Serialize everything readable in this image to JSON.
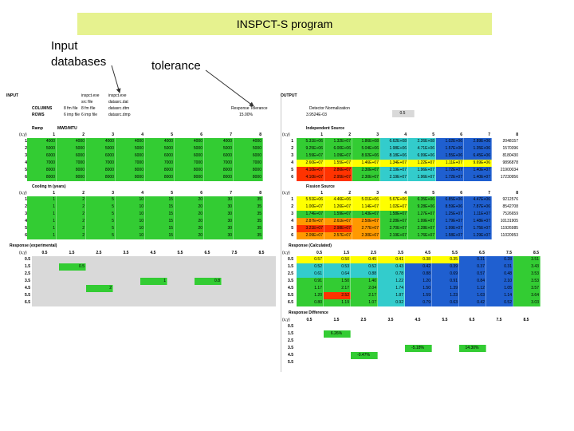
{
  "banner": {
    "text": "INSPCT-S program",
    "color": "#e6f28f"
  },
  "annotations": {
    "input_db": [
      "Input",
      "databases"
    ],
    "tolerance": "tolerance"
  },
  "colors": {
    "green": "#33cc33",
    "yellow": "#ffff00",
    "orange": "#ff9900",
    "red": "#ff3300",
    "blue": "#1f5fd0",
    "cyan": "#33cccc",
    "grey": "#d9d9d9"
  },
  "input": {
    "title": "INPUT",
    "meta_labels": [
      "COLUMNS",
      "ROWS"
    ],
    "meta_values": [
      "8 fm file",
      "6 imp file"
    ],
    "files_col1": [
      "inspct.exe",
      "src file",
      "8 fm file",
      "6 imp file"
    ],
    "files_col2": [
      "inspct.exe",
      "datasrc.dat",
      "datasrc.dtm",
      "datasrc.dmp"
    ],
    "ramp_title": "Ramp",
    "ramp_unit": "MWD/MTU",
    "cooling_title": "Cooling tn (years)",
    "response_title": "Response (experimental)",
    "xy_label": "(x,y)",
    "col_headers": [
      "1",
      "2",
      "3",
      "4",
      "5",
      "6",
      "7",
      "8"
    ],
    "row_headers": [
      "1",
      "2",
      "3",
      "4",
      "5",
      "6"
    ],
    "ramp_rows": [
      [
        "4000",
        "4000",
        "4000",
        "4000",
        "4000",
        "4000",
        "4000",
        "4000"
      ],
      [
        "5000",
        "5000",
        "5000",
        "5000",
        "5000",
        "5000",
        "5000",
        "5000"
      ],
      [
        "6000",
        "6000",
        "6000",
        "6000",
        "6000",
        "6000",
        "6000",
        "6000"
      ],
      [
        "7000",
        "7000",
        "7000",
        "7000",
        "7000",
        "7000",
        "7000",
        "7000"
      ],
      [
        "8000",
        "8000",
        "8000",
        "8000",
        "8000",
        "8000",
        "8000",
        "8000"
      ],
      [
        "8000",
        "8000",
        "8000",
        "8000",
        "8000",
        "8000",
        "8000",
        "8000"
      ]
    ],
    "cooling_rows": [
      [
        "1",
        "2",
        "5",
        "10",
        "15",
        "20",
        "30",
        "35"
      ],
      [
        "1",
        "2",
        "5",
        "10",
        "15",
        "20",
        "30",
        "35"
      ],
      [
        "1",
        "2",
        "5",
        "10",
        "15",
        "20",
        "30",
        "35"
      ],
      [
        "1",
        "2",
        "5",
        "10",
        "15",
        "20",
        "30",
        "35"
      ],
      [
        "1",
        "2",
        "5",
        "10",
        "15",
        "20",
        "30",
        "35"
      ],
      [
        "1",
        "2",
        "5",
        "10",
        "15",
        "20",
        "30",
        "35"
      ]
    ],
    "resp_col_headers": [
      "0.5",
      "1.5",
      "2.5",
      "3.5",
      "4.5",
      "5.5",
      "6.5",
      "7.5",
      "8.5"
    ],
    "resp_row_headers": [
      "0.5",
      "1.5",
      "2.5",
      "3.5",
      "4.5",
      "5.5",
      "6.5"
    ],
    "resp_markers": [
      {
        "row": 1,
        "col": 1,
        "value": "0.5"
      },
      {
        "row": 3,
        "col": 4,
        "value": "1"
      },
      {
        "row": 3,
        "col": 6,
        "value": "0.8"
      },
      {
        "row": 4,
        "col": 2,
        "value": "2"
      }
    ]
  },
  "output": {
    "title": "OUTPUT",
    "detector_norm_label": "Detector Normalization",
    "detector_norm_value": "3.9524E-03",
    "detector_box": "0.5",
    "tolerance_label": "Response Tolerance",
    "tolerance_value": "15.00%",
    "independent_title": "Independent Source",
    "fission_title": "Fission Source",
    "response_calc_title": "Response (Calculated)",
    "response_diff_title": "Response Difference",
    "xy_label": "(x,y)",
    "col_headers": [
      "1",
      "2",
      "3",
      "4",
      "5",
      "6",
      "7",
      "8"
    ],
    "row_headers": [
      "1",
      "2",
      "3",
      "4",
      "5",
      "6"
    ],
    "independent_rows": [
      [
        "5.31E+06",
        "1.32E+07",
        "1.86E+08",
        "6.62E+08",
        "2.26E+08",
        "1.02E+06",
        "2.89E+06",
        "2048157"
      ],
      [
        "9.25E+06",
        "6.00E+06",
        "5.04E+06",
        "1.98E+06",
        "4.71E+06",
        "1.57E+06",
        "1.35E+06",
        "1570396"
      ],
      [
        "1.59E+07",
        "1.09E+07",
        "8.92E+06",
        "8.18E+06",
        "6.99E+06",
        "1.55E+06",
        "6.45E+06",
        "8180430"
      ],
      [
        "2.60E+07",
        "1.55E+07",
        "1.46E+07",
        "1.34E+07",
        "1.22E+07",
        "1.11E+07",
        "9.69E+06",
        "9896878"
      ],
      [
        "4.10E+07",
        "2.86E+07",
        "2.30E+07",
        "2.19E+07",
        "1.96E+07",
        "1.72E+07",
        "1.40E+07",
        "21900034"
      ],
      [
        "4.10E+07",
        "2.95E+07",
        "2.30E+07",
        "2.19E+07",
        "1.96E+07",
        "1.72E+07",
        "1.40E+07",
        "17230956"
      ]
    ],
    "fission_rows": [
      [
        "5.51E+06",
        "4.46E+06",
        "5.01E+06",
        "5.67E+06",
        "6.35E+06",
        "6.85E+06",
        "4.47E+06",
        "9212576"
      ],
      [
        "1.00E+07",
        "1.26E+07",
        "1.14E+07",
        "1.02E+07",
        "9.28E+06",
        "8.59E+06",
        "7.87E+06",
        "8542708"
      ],
      [
        "1.74E+07",
        "1.59E+07",
        "1.43E+07",
        "1.58E+07",
        "1.27E+07",
        "1.25E+07",
        "1.11E+07",
        "7526659"
      ],
      [
        "2.87E+07",
        "2.61E+07",
        "2.50E+07",
        "2.28E+07",
        "1.99E+07",
        "1.79E+07",
        "1.48E+07",
        "10131905"
      ],
      [
        "3.21E+07",
        "2.98E+07",
        "2.77E+07",
        "2.70E+07",
        "2.28E+07",
        "1.99E+07",
        "1.75E+07",
        "11926985"
      ],
      [
        "2.09E+07",
        "2.57E+07",
        "2.30E+07",
        "2.19E+07",
        "1.76E+07",
        "1.58E+07",
        "1.29E+07",
        "11020953"
      ]
    ],
    "calc_col_headers": [
      "0.5",
      "1.5",
      "2.5",
      "3.5",
      "4.5",
      "5.5",
      "6.5",
      "7.5",
      "8.5"
    ],
    "calc_row_headers": [
      "0.5",
      "1.5",
      "2.5",
      "3.5",
      "4.5",
      "5.5",
      "6.5"
    ],
    "calc_rows": [
      [
        "0.57",
        "0.50",
        "0.45",
        "0.41",
        "0.38",
        "0.35",
        "0.31",
        "0.28",
        "3.51"
      ],
      [
        "0.52",
        "0.53",
        "0.52",
        "0.43",
        "0.42",
        "0.39",
        "0.37",
        "0.31",
        "3.43"
      ],
      [
        "0.61",
        "0.64",
        "0.88",
        "0.78",
        "0.88",
        "0.69",
        "0.57",
        "0.48",
        "3.53"
      ],
      [
        "0.91",
        "1.50",
        "1.40",
        "1.22",
        "1.20",
        "0.91",
        "0.84",
        "2.10",
        "3.53"
      ],
      [
        "1.17",
        "2.17",
        "2.04",
        "1.74",
        "1.50",
        "1.39",
        "1.12",
        "1.05",
        "3.57"
      ],
      [
        "1.20",
        "2.52",
        "2.17",
        "1.87",
        "1.59",
        "1.23",
        "1.03",
        "1.14",
        "3.64"
      ],
      [
        "0.80",
        "1.19",
        "1.07",
        "0.92",
        "0.79",
        "0.63",
        "0.42",
        "0.52",
        "3.03"
      ]
    ],
    "diff_col_headers": [
      "0.5",
      "1.5",
      "2.5",
      "3.5",
      "4.5",
      "5.5",
      "6.5",
      "7.5",
      "8.5"
    ],
    "diff_row_headers": [
      "0.5",
      "1.5",
      "2.5",
      "3.5",
      "4.5",
      "5.5"
    ],
    "diff_markers": [
      {
        "row": 1,
        "col": 1,
        "value": "6.26%"
      },
      {
        "row": 3,
        "col": 4,
        "value": "-5.18%"
      },
      {
        "row": 3,
        "col": 6,
        "value": "14.30%"
      },
      {
        "row": 4,
        "col": 2,
        "value": "-0.47%"
      }
    ]
  }
}
